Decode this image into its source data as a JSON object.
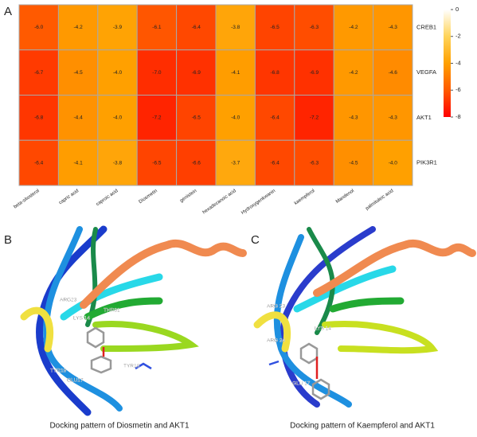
{
  "panel_labels": [
    "A",
    "B",
    "C"
  ],
  "chart_data": {
    "type": "heatmap",
    "categories": [
      "beta-sitosterol",
      "capric acid",
      "caproic acid",
      "Diosmetin",
      "genistein",
      "hexadecanoic acid",
      "Hydroxygenkwanin",
      "kaempferol",
      "Mandenol",
      "palmitoleic acid"
    ],
    "rows": [
      "CREB1",
      "VEGFA",
      "AKT1",
      "PIK3R1"
    ],
    "values": [
      [
        -6.0,
        -4.2,
        -3.9,
        -6.1,
        -6.4,
        -3.8,
        -6.5,
        -6.3,
        -4.2,
        -4.3
      ],
      [
        -6.7,
        -4.5,
        -4.0,
        -7.0,
        -6.9,
        -4.1,
        -6.8,
        -6.9,
        -4.2,
        -4.6
      ],
      [
        -6.8,
        -4.4,
        -4.0,
        -7.2,
        -6.5,
        -4.0,
        -6.4,
        -7.2,
        -4.3,
        -4.3
      ],
      [
        -6.4,
        -4.1,
        -3.8,
        -6.5,
        -6.6,
        -3.7,
        -6.4,
        -6.3,
        -4.5,
        -4.0
      ]
    ],
    "value_labels": [
      [
        "-6.0",
        "-4.2",
        "-3.9",
        "-6.1",
        "-6.4",
        "-3.8",
        "-6.5",
        "-6.3",
        "-4.2",
        "-4.3"
      ],
      [
        "-6.7",
        "-4.5",
        "-4.0",
        "-7.0",
        "-6.9",
        "-4.1",
        "-6.8",
        "-6.9",
        "-4.2",
        "-4.6"
      ],
      [
        "-6.8",
        "-4.4",
        "-4.0",
        "-7.2",
        "-6.5",
        "-4.0",
        "-6.4",
        "-7.2",
        "-4.3",
        "-4.3"
      ],
      [
        "-6.4",
        "-4.1",
        "-3.8",
        "-6.5",
        "-6.6",
        "-3.7",
        "-6.4",
        "-6.3",
        "-4.5",
        "-4.0"
      ]
    ],
    "clim": [
      -8,
      0
    ],
    "cticks": [
      0,
      -2,
      -4,
      -6,
      -8
    ],
    "colors": [
      "#ff0000",
      "#ff5a00",
      "#ffa000",
      "#ffd45a",
      "#ffffff"
    ]
  },
  "panels": [
    {
      "caption": "Docking pattern of Diosmetin and AKT1",
      "residues": [
        "ARG23",
        "THR81",
        "LYS 14",
        "TYR18",
        "TYR19",
        "GLU17"
      ]
    },
    {
      "caption": "Docking pattern of Kaempferol and AKT1",
      "residues": [
        "ARG 23",
        "LYS 14",
        "ARG 24",
        "GLU 17"
      ]
    }
  ]
}
